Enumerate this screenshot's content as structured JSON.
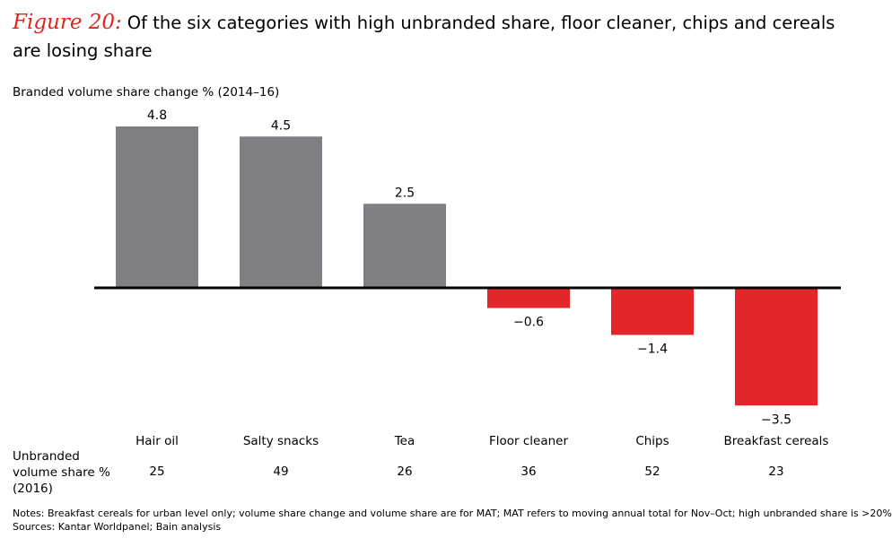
{
  "figure": {
    "label": "Figure 20:",
    "title": "Of the six categories with high unbranded share, floor cleaner, chips and cereals are losing share"
  },
  "unbranded_row": {
    "label": "Unbranded volume share % (2016)"
  },
  "notes": {
    "notes_line": "Notes: Breakfast cereals for urban level only; volume share change and volume share are for MAT; MAT refers to moving annual total for Nov–Oct; high unbranded share is >20%",
    "sources_line": "Sources: Kantar Worldpanel; Bain analysis"
  },
  "colors": {
    "positive": "#808084",
    "negative": "#e3262a",
    "axis": "#000000",
    "figure_label": "#e0261c"
  },
  "chart_data": {
    "type": "bar",
    "ylabel": "Branded volume share change % (2014–16)",
    "categories": [
      "Hair oil",
      "Salty snacks",
      "Tea",
      "Floor cleaner",
      "Chips",
      "Breakfast cereals"
    ],
    "values": [
      4.8,
      4.5,
      2.5,
      -0.6,
      -1.4,
      -3.5
    ],
    "value_labels": [
      "4.8",
      "4.5",
      "2.5",
      "−0.6",
      "−1.4",
      "−3.5"
    ],
    "unbranded_share": [
      25,
      49,
      26,
      36,
      52,
      23
    ],
    "ylim": [
      -3.5,
      4.8
    ],
    "grid": false
  }
}
